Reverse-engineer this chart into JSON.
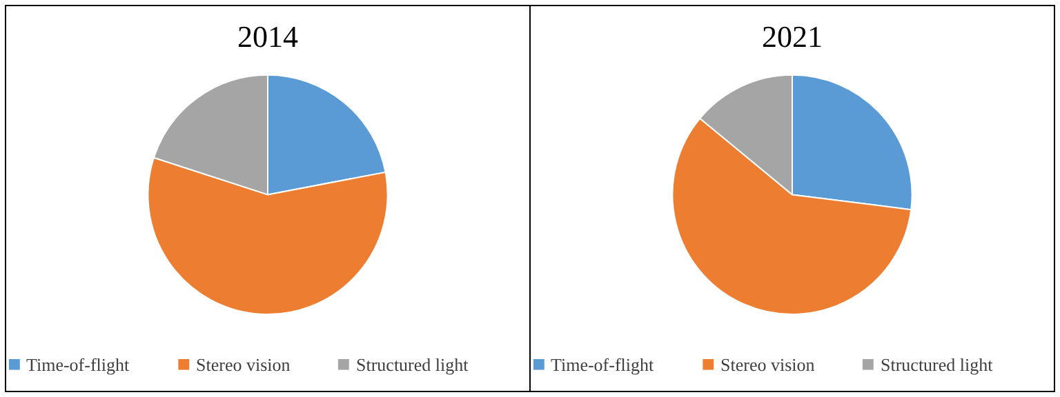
{
  "chart_data": [
    {
      "type": "pie",
      "title": "2014",
      "categories": [
        "Time-of-flight",
        "Stereo vision",
        "Structured light"
      ],
      "values": [
        22,
        58,
        20
      ],
      "colors": [
        "#5b9bd5",
        "#ed7d31",
        "#a5a5a5"
      ],
      "legend": "bottom"
    },
    {
      "type": "pie",
      "title": "2021",
      "categories": [
        "Time-of-flight",
        "Stereo vision",
        "Structured light"
      ],
      "values": [
        27,
        59,
        14
      ],
      "colors": [
        "#5b9bd5",
        "#ed7d31",
        "#a5a5a5"
      ],
      "legend": "bottom"
    }
  ]
}
